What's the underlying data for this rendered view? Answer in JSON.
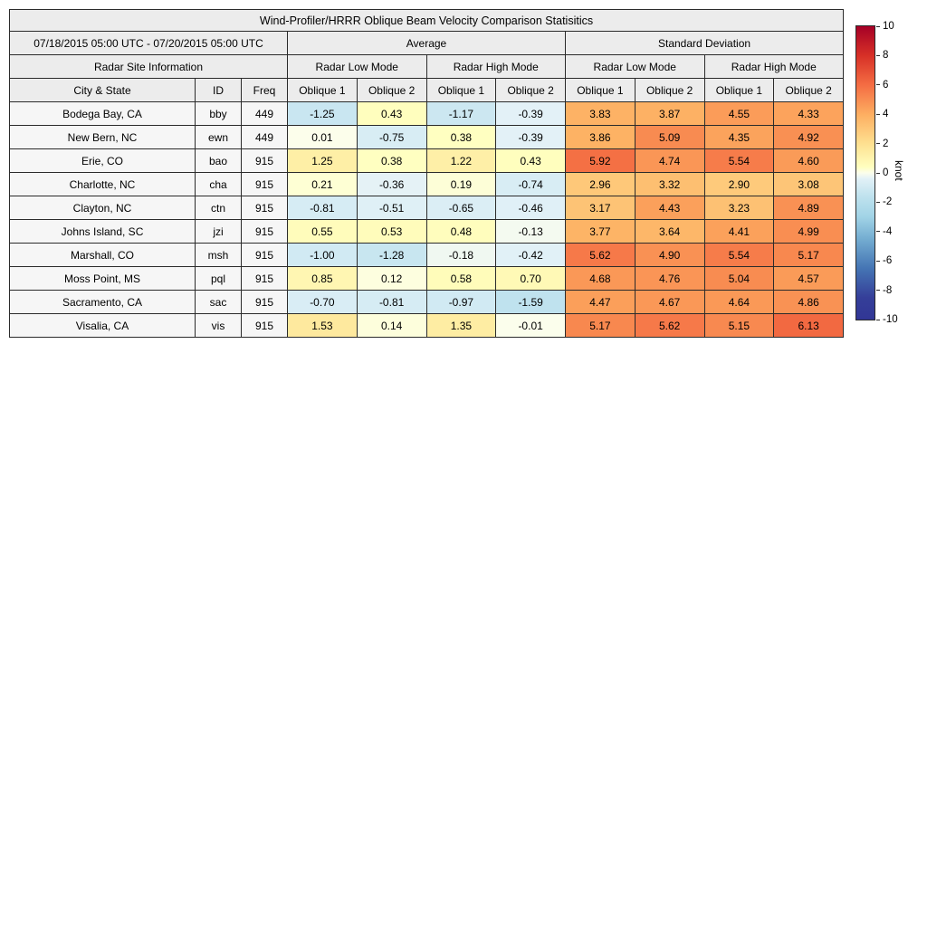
{
  "chart_data": {
    "type": "heatmap",
    "title": "Wind-Profiler/HRRR Oblique Beam Velocity Comparison Statisitics",
    "period": "07/18/2015 05:00 UTC - 07/20/2015 05:00 UTC",
    "group_headers": {
      "average": "Average",
      "std": "Standard Deviation"
    },
    "mode_headers": {
      "site_info": "Radar Site Information",
      "low": "Radar Low Mode",
      "high": "Radar High Mode"
    },
    "column_headers": {
      "city": "City & State",
      "id": "ID",
      "freq": "Freq",
      "oblique1": "Oblique 1",
      "oblique2": "Oblique 2"
    },
    "value_columns": [
      "avg_low_oblique1",
      "avg_low_oblique2",
      "avg_high_oblique1",
      "avg_high_oblique2",
      "std_low_oblique1",
      "std_low_oblique2",
      "std_high_oblique1",
      "std_high_oblique2"
    ],
    "rows": [
      {
        "city": "Bodega Bay, CA",
        "id": "bby",
        "freq": "449",
        "values": [
          -1.25,
          0.43,
          -1.17,
          -0.39,
          3.83,
          3.87,
          4.55,
          4.33
        ]
      },
      {
        "city": "New Bern, NC",
        "id": "ewn",
        "freq": "449",
        "values": [
          0.01,
          -0.75,
          0.38,
          -0.39,
          3.86,
          5.09,
          4.35,
          4.92
        ]
      },
      {
        "city": "Erie, CO",
        "id": "bao",
        "freq": "915",
        "values": [
          1.25,
          0.38,
          1.22,
          0.43,
          5.92,
          4.74,
          5.54,
          4.6
        ]
      },
      {
        "city": "Charlotte, NC",
        "id": "cha",
        "freq": "915",
        "values": [
          0.21,
          -0.36,
          0.19,
          -0.74,
          2.96,
          3.32,
          2.9,
          3.08
        ]
      },
      {
        "city": "Clayton, NC",
        "id": "ctn",
        "freq": "915",
        "values": [
          -0.81,
          -0.51,
          -0.65,
          -0.46,
          3.17,
          4.43,
          3.23,
          4.89
        ]
      },
      {
        "city": "Johns Island, SC",
        "id": "jzi",
        "freq": "915",
        "values": [
          0.55,
          0.53,
          0.48,
          -0.13,
          3.77,
          3.64,
          4.41,
          4.99
        ]
      },
      {
        "city": "Marshall, CO",
        "id": "msh",
        "freq": "915",
        "values": [
          -1.0,
          -1.28,
          -0.18,
          -0.42,
          5.62,
          4.9,
          5.54,
          5.17
        ]
      },
      {
        "city": "Moss Point, MS",
        "id": "pql",
        "freq": "915",
        "values": [
          0.85,
          0.12,
          0.58,
          0.7,
          4.68,
          4.76,
          5.04,
          4.57
        ]
      },
      {
        "city": "Sacramento, CA",
        "id": "sac",
        "freq": "915",
        "values": [
          -0.7,
          -0.81,
          -0.97,
          -1.59,
          4.47,
          4.67,
          4.64,
          4.86
        ]
      },
      {
        "city": "Visalia, CA",
        "id": "vis",
        "freq": "915",
        "values": [
          1.53,
          0.14,
          1.35,
          -0.01,
          5.17,
          5.62,
          5.15,
          6.13
        ]
      }
    ],
    "colorbar": {
      "label": "knot",
      "min": -10,
      "max": 10,
      "ticks": [
        10,
        8,
        6,
        4,
        2,
        0,
        -2,
        -4,
        -6,
        -8,
        -10
      ],
      "stops": [
        {
          "v": 10,
          "color": "#a50026"
        },
        {
          "v": 8,
          "color": "#d73027"
        },
        {
          "v": 6,
          "color": "#f46d43"
        },
        {
          "v": 4,
          "color": "#fdae61"
        },
        {
          "v": 2,
          "color": "#fee090"
        },
        {
          "v": 0.4,
          "color": "#ffffbf"
        },
        {
          "v": 0,
          "color": "#fcfeec"
        },
        {
          "v": -0.4,
          "color": "#e2f1f7"
        },
        {
          "v": -1.6,
          "color": "#bfe2ee"
        },
        {
          "v": -3,
          "color": "#a1d3e6"
        },
        {
          "v": -4.5,
          "color": "#74add1"
        },
        {
          "v": -6.5,
          "color": "#4575b4"
        },
        {
          "v": -8.5,
          "color": "#353f99"
        },
        {
          "v": -10,
          "color": "#313695"
        }
      ]
    }
  }
}
